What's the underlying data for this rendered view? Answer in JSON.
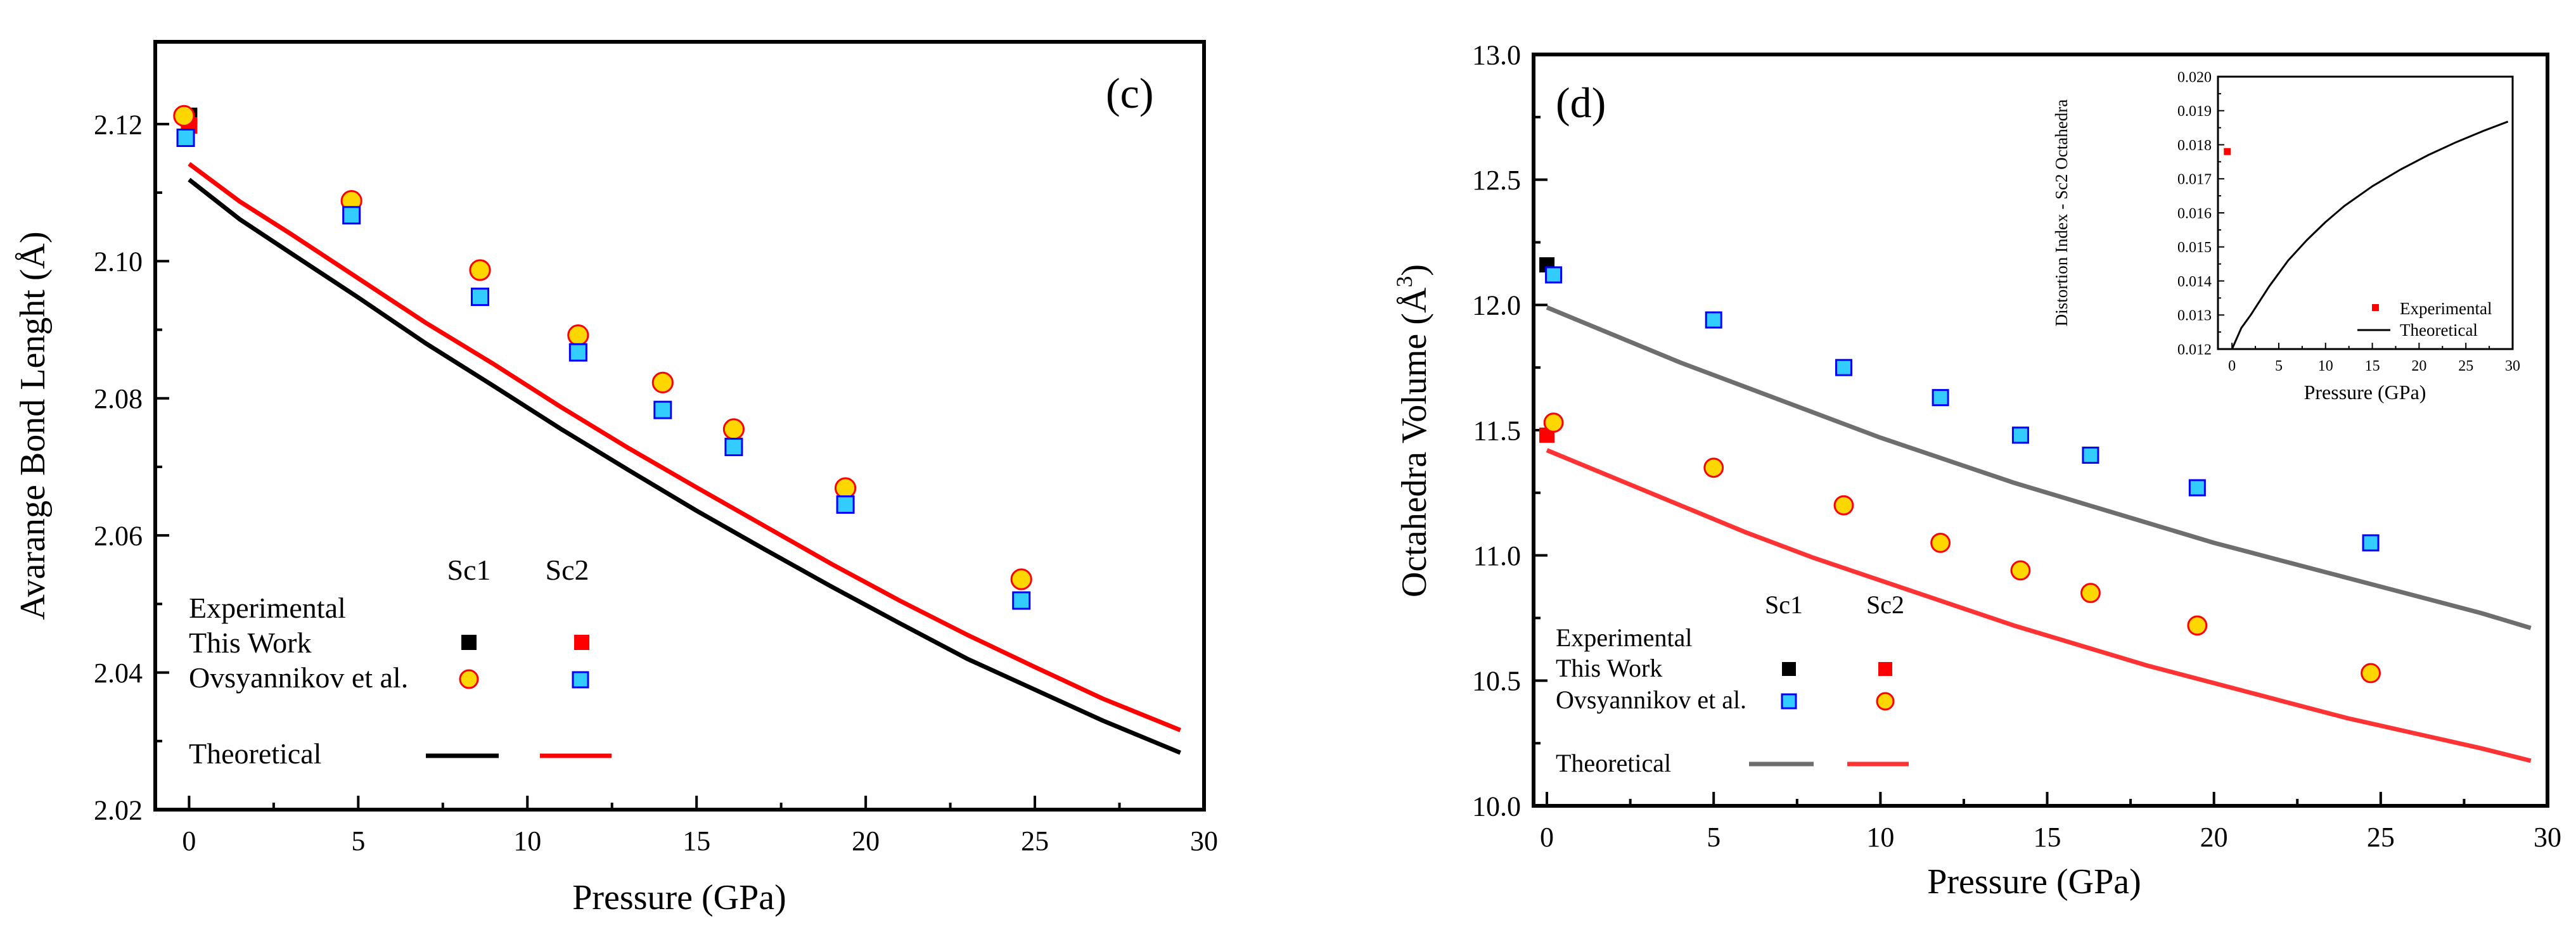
{
  "chart_data": [
    {
      "type": "scatter",
      "panel_label": "(c)",
      "xlabel": "Pressure (GPa)",
      "ylabel": "Avarange Bond Lenght (Å)",
      "xlim": [
        -1,
        30
      ],
      "ylim": [
        2.02,
        2.132
      ],
      "xticks": [
        0,
        5,
        10,
        15,
        20,
        25,
        30
      ],
      "yticks": [
        2.02,
        2.04,
        2.06,
        2.08,
        2.1,
        2.12
      ],
      "xtick_labels": [
        "0",
        "5",
        "10",
        "15",
        "20",
        "25",
        "30"
      ],
      "ytick_labels": [
        "2.02",
        "2.04",
        "2.06",
        "2.08",
        "2.10",
        "2.12"
      ],
      "legend": {
        "col1": "Sc1",
        "col2": "Sc2",
        "group_experimental": "Experimental",
        "row_this_work": "This Work",
        "row_ovsyannikov": "Ovsyannikov et al.",
        "row_theoretical": "Theoretical"
      },
      "series": [
        {
          "name": "This Work Sc1",
          "kind": "points",
          "marker": "square",
          "fill": "#000000",
          "x": [
            0.0
          ],
          "y": [
            2.1212
          ]
        },
        {
          "name": "This Work Sc2",
          "kind": "points",
          "marker": "square",
          "fill": "#ff0000",
          "x": [
            0.0
          ],
          "y": [
            2.1198
          ]
        },
        {
          "name": "Ovsyannikov et al. Sc1",
          "kind": "points",
          "marker": "circle",
          "fill": "#ffd700",
          "stroke": "#ff0000",
          "x": [
            -0.15,
            4.8,
            8.6,
            11.5,
            14.0,
            16.1,
            19.4,
            24.6
          ],
          "y": [
            2.1212,
            2.1088,
            2.0987,
            2.0892,
            2.0823,
            2.0755,
            2.0669,
            2.0536
          ]
        },
        {
          "name": "Ovsyannikov et al. Sc2",
          "kind": "points",
          "marker": "square",
          "fill": "#33ccff",
          "stroke": "#0000ff",
          "x": [
            -0.1,
            4.8,
            8.6,
            11.5,
            14.0,
            16.1,
            19.4,
            24.6
          ],
          "y": [
            2.118,
            2.1067,
            2.0948,
            2.0867,
            2.0783,
            2.0729,
            2.0645,
            2.0505
          ]
        },
        {
          "name": "Theoretical Sc1",
          "kind": "line",
          "stroke": "#000000",
          "x": [
            0,
            1.5,
            3,
            5,
            7,
            9,
            11,
            13,
            15,
            17,
            19,
            21,
            23,
            25,
            27,
            29.3
          ],
          "y": [
            2.1119,
            2.1061,
            2.1012,
            2.0947,
            2.088,
            2.0818,
            2.0755,
            2.0695,
            2.0636,
            2.058,
            2.0525,
            2.0472,
            2.042,
            2.0375,
            2.033,
            2.0283
          ]
        },
        {
          "name": "Theoretical Sc2",
          "kind": "line",
          "stroke": "#ff0000",
          "x": [
            0,
            1.5,
            3,
            5,
            7,
            9,
            11,
            13,
            15,
            17,
            19,
            21,
            23,
            25,
            27,
            29.3
          ],
          "y": [
            2.1142,
            2.1087,
            2.104,
            2.0975,
            2.091,
            2.085,
            2.0787,
            2.0727,
            2.067,
            2.0614,
            2.0558,
            2.0505,
            2.0455,
            2.0408,
            2.0362,
            2.0316
          ]
        }
      ]
    },
    {
      "type": "scatter",
      "panel_label": "(d)",
      "xlabel": "Pressure (GPa)",
      "ylabel_main": "Octahedra Volume (Å",
      "ylabel_sup": "3",
      "ylabel_end": ")",
      "xlim": [
        -0.4,
        30
      ],
      "ylim": [
        10.0,
        13.0
      ],
      "xticks": [
        0,
        5,
        10,
        15,
        20,
        25,
        30
      ],
      "yticks": [
        10.0,
        10.5,
        11.0,
        11.5,
        12.0,
        12.5,
        13.0
      ],
      "xtick_labels": [
        "0",
        "5",
        "10",
        "15",
        "20",
        "25",
        "30"
      ],
      "ytick_labels": [
        "10.0",
        "10.5",
        "11.0",
        "11.5",
        "12.0",
        "12.5",
        "13.0"
      ],
      "legend": {
        "col1": "Sc1",
        "col2": "Sc2",
        "group_experimental": "Experimental",
        "row_this_work": "This Work",
        "row_ovsyannikov": "Ovsyannikov et al.",
        "row_theoretical": "Theoretical"
      },
      "series": [
        {
          "name": "This Work Sc1",
          "kind": "points",
          "marker": "square",
          "fill": "#000000",
          "x": [
            0.0
          ],
          "y": [
            12.16
          ]
        },
        {
          "name": "This Work Sc2",
          "kind": "points",
          "marker": "square",
          "fill": "#ff0000",
          "x": [
            0.0
          ],
          "y": [
            11.48
          ]
        },
        {
          "name": "Ovsyannikov et al. Sc1",
          "kind": "points",
          "marker": "square",
          "fill": "#33ccff",
          "stroke": "#0000ff",
          "x": [
            0.2,
            5.0,
            8.9,
            11.8,
            14.2,
            16.3,
            19.5,
            24.7
          ],
          "y": [
            12.12,
            11.94,
            11.75,
            11.63,
            11.48,
            11.4,
            11.27,
            11.05
          ]
        },
        {
          "name": "Ovsyannikov et al. Sc2",
          "kind": "points",
          "marker": "circle",
          "fill": "#ffd700",
          "stroke": "#ff0000",
          "x": [
            0.2,
            5.0,
            8.9,
            11.8,
            14.2,
            16.3,
            19.5,
            24.7
          ],
          "y": [
            11.53,
            11.35,
            11.2,
            11.05,
            10.94,
            10.85,
            10.72,
            10.53
          ]
        },
        {
          "name": "Theoretical Sc1",
          "kind": "line",
          "stroke": "#6e6e6e",
          "x": [
            0,
            2,
            4,
            6,
            8,
            10,
            12,
            14,
            16,
            18,
            20,
            22,
            24,
            26,
            28,
            29.5
          ],
          "y": [
            11.99,
            11.88,
            11.77,
            11.67,
            11.57,
            11.47,
            11.38,
            11.29,
            11.21,
            11.13,
            11.05,
            10.98,
            10.91,
            10.84,
            10.77,
            10.71
          ]
        },
        {
          "name": "Theoretical Sc2",
          "kind": "line",
          "stroke": "#ff3333",
          "x": [
            0,
            2,
            4,
            6,
            8,
            10,
            12,
            14,
            16,
            18,
            20,
            22,
            24,
            26,
            28,
            29.5
          ],
          "y": [
            11.42,
            11.31,
            11.2,
            11.09,
            10.99,
            10.9,
            10.81,
            10.72,
            10.64,
            10.56,
            10.49,
            10.42,
            10.35,
            10.29,
            10.23,
            10.18
          ]
        }
      ],
      "inset": {
        "type": "scatter",
        "xlabel": "Pressure (GPa)",
        "ylabel": "Distortion Index - Sc2 Octahedra",
        "xlim": [
          -1.5,
          30
        ],
        "ylim": [
          0.012,
          0.02
        ],
        "xticks": [
          0,
          5,
          10,
          15,
          20,
          25,
          30
        ],
        "yticks": [
          0.012,
          0.013,
          0.014,
          0.015,
          0.016,
          0.017,
          0.018,
          0.019,
          0.02
        ],
        "xtick_labels": [
          "0",
          "5",
          "10",
          "15",
          "20",
          "25",
          "30"
        ],
        "ytick_labels": [
          "0.012",
          "0.013",
          "0.014",
          "0.015",
          "0.016",
          "0.017",
          "0.018",
          "0.019",
          "0.020"
        ],
        "legend": {
          "experimental": "Experimental",
          "theoretical": "Theoretical"
        },
        "series": [
          {
            "name": "Experimental",
            "kind": "points",
            "marker": "square",
            "fill": "#ff0000",
            "x": [
              -0.5
            ],
            "y": [
              0.0178
            ]
          },
          {
            "name": "Theoretical",
            "kind": "line",
            "stroke": "#000000",
            "x": [
              0,
              1,
              2,
              4,
              6,
              8,
              10,
              12,
              15,
              18,
              21,
              24,
              27,
              29.5
            ],
            "y": [
              0.012,
              0.01262,
              0.013,
              0.01385,
              0.0146,
              0.0152,
              0.01573,
              0.0162,
              0.01678,
              0.01727,
              0.0177,
              0.01808,
              0.01842,
              0.01868
            ]
          }
        ]
      }
    }
  ]
}
